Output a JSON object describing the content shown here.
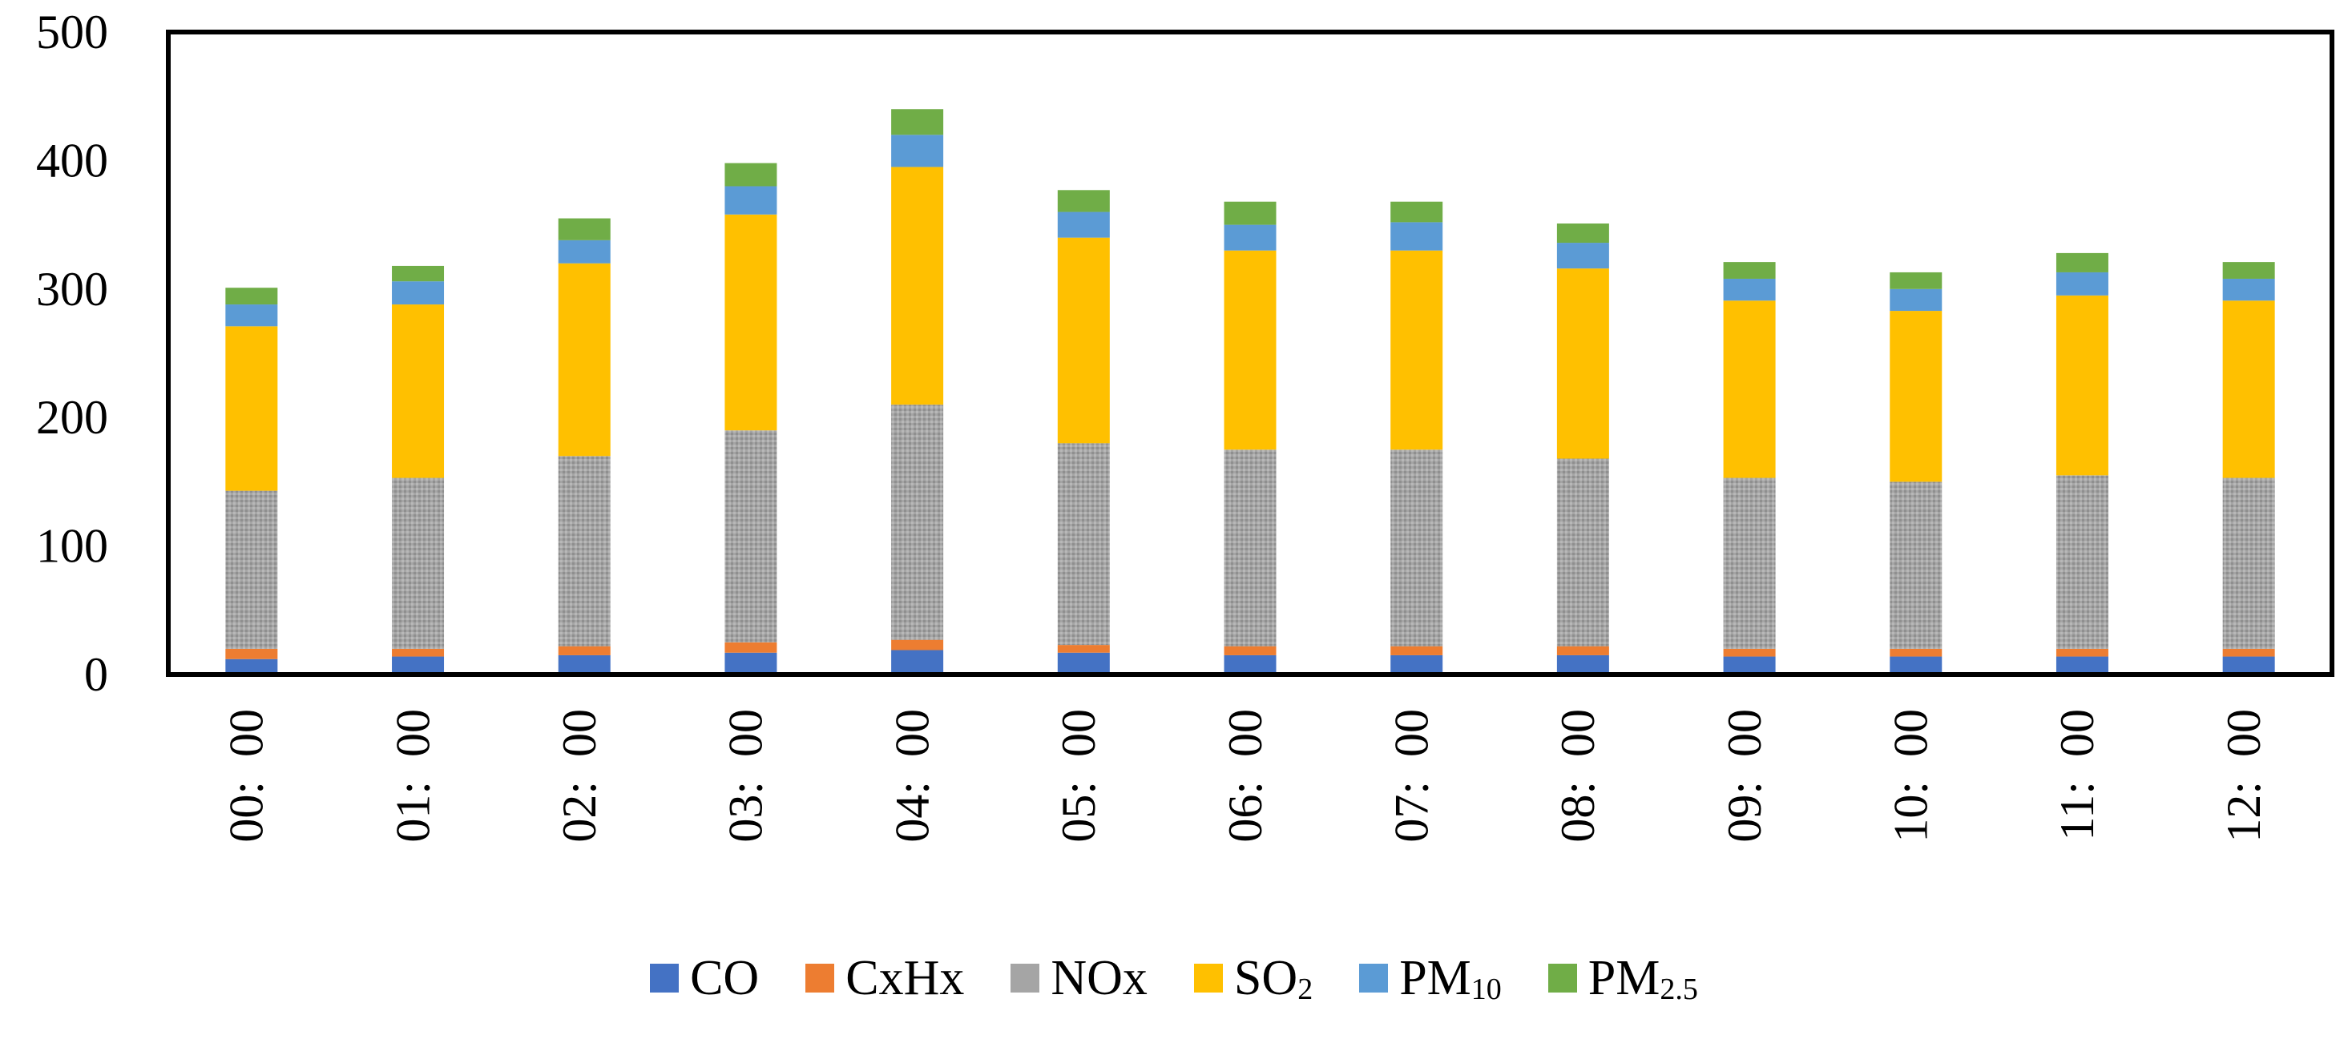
{
  "chart_data": {
    "type": "bar",
    "stacked": true,
    "title": "",
    "xlabel": "",
    "ylabel": "",
    "ylim": [
      0,
      500
    ],
    "yticks": [
      "0",
      "100",
      "200",
      "300",
      "400",
      "500"
    ],
    "categories": [
      "00:  00",
      "01:  00",
      "02:  00",
      "03:  00",
      "04:  00",
      "05:  00",
      "06:  00",
      "07:  00",
      "08:  00",
      "09:  00",
      "10:  00",
      "11:  00",
      "12:  00"
    ],
    "series": [
      {
        "name": "CO",
        "label_main": "CO",
        "label_sub": "",
        "color": "#4472C4",
        "values": [
          12,
          14,
          15,
          17,
          19,
          17,
          15,
          15,
          15,
          14,
          14,
          14,
          14
        ]
      },
      {
        "name": "CxHx",
        "label_main": "CxHx",
        "label_sub": "",
        "color": "#ED7D31",
        "values": [
          8,
          6,
          7,
          8,
          8,
          6,
          7,
          7,
          7,
          6,
          6,
          6,
          6
        ]
      },
      {
        "name": "NOx",
        "label_main": "NOx",
        "label_sub": "",
        "color": "#A5A5A5",
        "values": [
          123,
          133,
          148,
          165,
          183,
          157,
          153,
          153,
          146,
          133,
          130,
          135,
          133
        ]
      },
      {
        "name": "SO2",
        "label_main": "SO",
        "label_sub": "2",
        "color": "#FFC000",
        "values": [
          128,
          135,
          150,
          168,
          185,
          160,
          155,
          155,
          148,
          138,
          133,
          140,
          138
        ]
      },
      {
        "name": "PM10",
        "label_main": "PM",
        "label_sub": "10",
        "color": "#5B9BD5",
        "values": [
          17,
          18,
          18,
          22,
          25,
          20,
          20,
          22,
          20,
          17,
          17,
          18,
          17
        ]
      },
      {
        "name": "PM2.5",
        "label_main": "PM",
        "label_sub": "2.5",
        "color": "#70AD47",
        "values": [
          13,
          12,
          17,
          18,
          20,
          17,
          18,
          16,
          15,
          13,
          13,
          15,
          13
        ]
      }
    ],
    "grid": false,
    "legend_position": "bottom"
  }
}
